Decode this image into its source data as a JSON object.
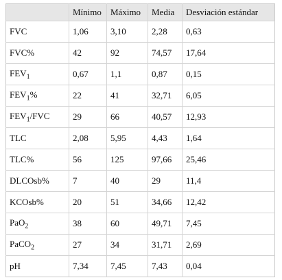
{
  "table": {
    "header": [
      "",
      "Mínimo",
      "Máximo",
      "Media",
      "Desviación estándar"
    ],
    "rows": [
      {
        "label": [
          {
            "text": "FVC"
          }
        ],
        "cells": [
          "1,06",
          "3,10",
          "2,28",
          "0,63"
        ]
      },
      {
        "label": [
          {
            "text": "FVC%"
          }
        ],
        "cells": [
          "42",
          "92",
          "74,57",
          "17,64"
        ]
      },
      {
        "label": [
          {
            "text": "FEV"
          },
          {
            "sub": "1"
          }
        ],
        "cells": [
          "0,67",
          "1,1",
          "0,87",
          "0,15"
        ]
      },
      {
        "label": [
          {
            "text": "FEV"
          },
          {
            "sub": "1"
          },
          {
            "text": "%"
          }
        ],
        "cells": [
          "22",
          "41",
          "32,71",
          "6,05"
        ]
      },
      {
        "label": [
          {
            "text": "FEV"
          },
          {
            "sub": "1"
          },
          {
            "text": "/FVC"
          }
        ],
        "cells": [
          "29",
          "66",
          "40,57",
          "12,93"
        ]
      },
      {
        "label": [
          {
            "text": "TLC"
          }
        ],
        "cells": [
          "2,08",
          "5,95",
          "4,43",
          "1,64"
        ]
      },
      {
        "label": [
          {
            "text": "TLC%"
          }
        ],
        "cells": [
          "56",
          "125",
          "97,66",
          "25,46"
        ]
      },
      {
        "label": [
          {
            "text": "DLCOsb%"
          }
        ],
        "cells": [
          "7",
          "40",
          "29",
          "11,4"
        ]
      },
      {
        "label": [
          {
            "text": "KCOsb%"
          }
        ],
        "cells": [
          "20",
          "51",
          "34,66",
          "12,42"
        ]
      },
      {
        "label": [
          {
            "text": "PaO"
          },
          {
            "sub": "2"
          }
        ],
        "cells": [
          "38",
          "60",
          "49,71",
          "7,45"
        ]
      },
      {
        "label": [
          {
            "text": "PaCO"
          },
          {
            "sub": "2"
          }
        ],
        "cells": [
          "27",
          "34",
          "31,71",
          "2,69"
        ]
      },
      {
        "label": [
          {
            "text": "pH"
          }
        ],
        "cells": [
          "7,34",
          "7,45",
          "7,43",
          "0,04"
        ]
      }
    ]
  }
}
